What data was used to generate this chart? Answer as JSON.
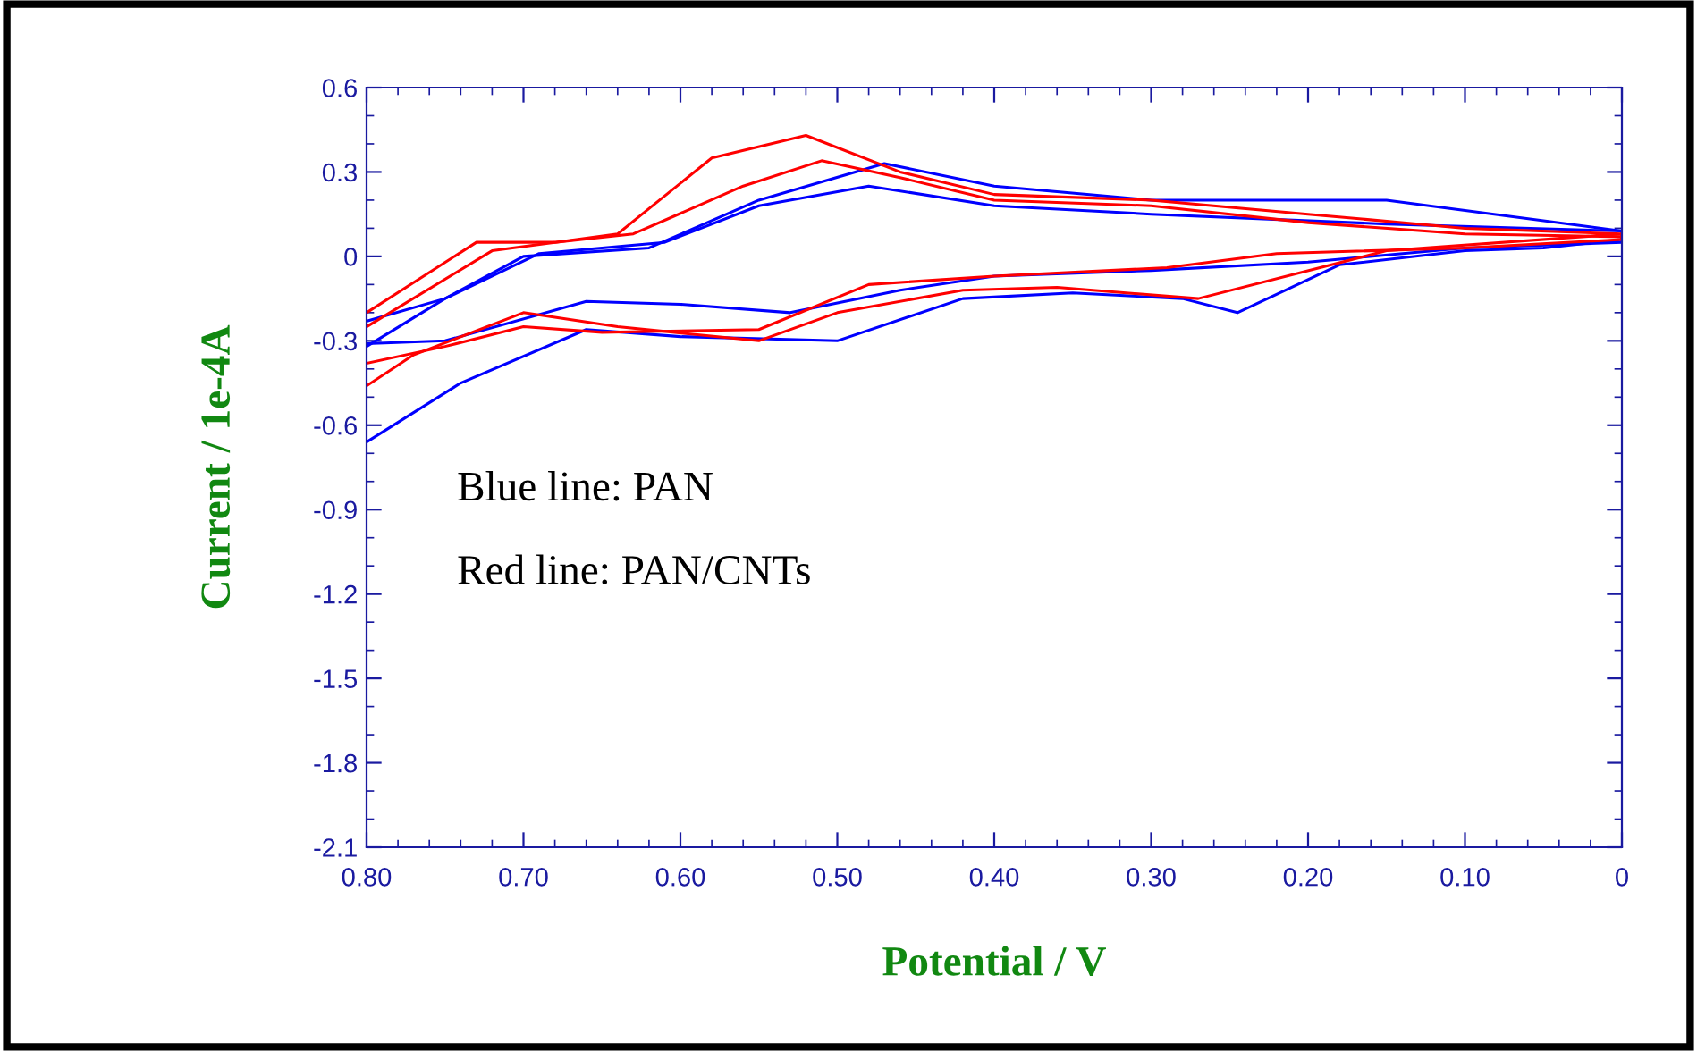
{
  "chart_data": {
    "type": "line",
    "xlabel": "Potential / V",
    "ylabel": "Current / 1e-4A",
    "xlim": [
      0.8,
      0
    ],
    "ylim": [
      -2.1,
      0.6
    ],
    "xticks": [
      {
        "value": 0.8,
        "label": "0.80"
      },
      {
        "value": 0.7,
        "label": "0.70"
      },
      {
        "value": 0.6,
        "label": "0.60"
      },
      {
        "value": 0.5,
        "label": "0.50"
      },
      {
        "value": 0.4,
        "label": "0.40"
      },
      {
        "value": 0.3,
        "label": "0.30"
      },
      {
        "value": 0.2,
        "label": "0.20"
      },
      {
        "value": 0.1,
        "label": "0.10"
      },
      0
    ],
    "yticks": [
      0.6,
      0.3,
      0,
      -0.3,
      -0.6,
      -0.9,
      -1.2,
      -1.5,
      -1.8,
      -2.1
    ],
    "grid": false,
    "legend": false,
    "marker": "none",
    "line_style": "solid",
    "annotations": [
      "Blue line: PAN",
      "Red line: PAN/CNTs"
    ],
    "series": [
      {
        "color": "#0000ff",
        "x": [
          0.8,
          0.75,
          0.7,
          0.62,
          0.55,
          0.47,
          0.4,
          0.3,
          0.15,
          0,
          0,
          0.05,
          0.1,
          0.18,
          0.245,
          0.28,
          0.35,
          0.42,
          0.5,
          0.6,
          0.66,
          0.74,
          0.8
        ],
        "values": [
          -0.32,
          -0.15,
          0.0,
          0.03,
          0.2,
          0.33,
          0.25,
          0.2,
          0.2,
          0.09,
          0.06,
          0.03,
          0.02,
          -0.03,
          -0.2,
          -0.15,
          -0.13,
          -0.15,
          -0.3,
          -0.285,
          -0.26,
          -0.45,
          -0.66
        ]
      },
      {
        "color": "#0000ff",
        "x": [
          0.8,
          0.75,
          0.69,
          0.61,
          0.55,
          0.48,
          0.4,
          0.3,
          0.15,
          0,
          0,
          0.1,
          0.2,
          0.3,
          0.4,
          0.46,
          0.53,
          0.6,
          0.66,
          0.75,
          0.8
        ],
        "values": [
          -0.23,
          -0.15,
          0.01,
          0.05,
          0.18,
          0.25,
          0.18,
          0.15,
          0.115,
          0.09,
          0.05,
          0.03,
          -0.02,
          -0.05,
          -0.07,
          -0.12,
          -0.2,
          -0.17,
          -0.16,
          -0.3,
          -0.31
        ]
      },
      {
        "color": "#ff0000",
        "x": [
          0.8,
          0.73,
          0.68,
          0.64,
          0.58,
          0.52,
          0.46,
          0.4,
          0.3,
          0.2,
          0.1,
          0,
          0,
          0.15,
          0.27,
          0.36,
          0.42,
          0.5,
          0.55,
          0.64,
          0.7,
          0.77,
          0.8
        ],
        "values": [
          -0.2,
          0.05,
          0.05,
          0.08,
          0.35,
          0.43,
          0.3,
          0.22,
          0.2,
          0.15,
          0.1,
          0.08,
          0.08,
          0.02,
          -0.15,
          -0.11,
          -0.12,
          -0.2,
          -0.3,
          -0.25,
          -0.2,
          -0.35,
          -0.46
        ]
      },
      {
        "color": "#ff0000",
        "x": [
          0.8,
          0.72,
          0.68,
          0.63,
          0.56,
          0.51,
          0.46,
          0.4,
          0.3,
          0.2,
          0.1,
          0,
          0,
          0.1,
          0.22,
          0.29,
          0.4,
          0.48,
          0.55,
          0.65,
          0.7,
          0.75,
          0.8
        ],
        "values": [
          -0.25,
          0.02,
          0.05,
          0.08,
          0.25,
          0.34,
          0.28,
          0.2,
          0.18,
          0.12,
          0.08,
          0.07,
          0.06,
          0.03,
          0.01,
          -0.04,
          -0.07,
          -0.1,
          -0.26,
          -0.27,
          -0.25,
          -0.32,
          -0.38
        ]
      }
    ]
  }
}
